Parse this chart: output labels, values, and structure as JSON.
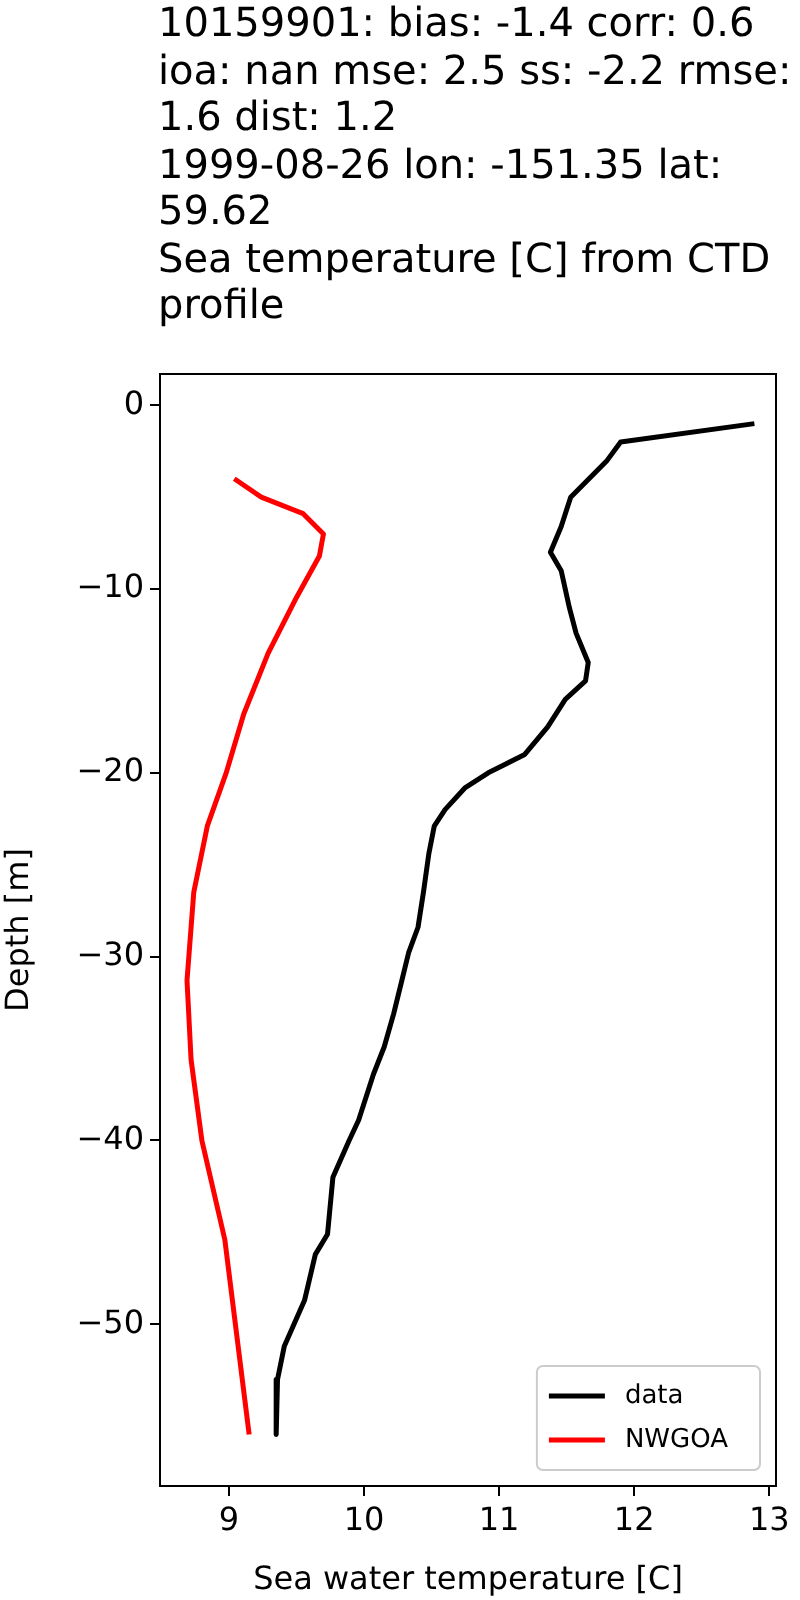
{
  "chart_data": {
    "type": "line",
    "title": "10159901: bias: -1.4  corr: 0.6  ioa: nan  mse: 2.5  ss: -2.2  rmse: 1.6  dist: 1.2\n1999-08-26 lon: -151.35 lat: 59.62\nSea temperature [C] from CTD profile",
    "xlabel": "Sea water temperature [C]",
    "ylabel": "Depth [m]",
    "series": [
      {
        "name": "data",
        "color": "#000000",
        "x": [
          12.89,
          11.9,
          11.8,
          11.53,
          11.46,
          11.38,
          11.46,
          11.52,
          11.57,
          11.66,
          11.64,
          11.49,
          11.36,
          11.19,
          10.92,
          10.75,
          10.6,
          10.52,
          10.48,
          10.44,
          10.4,
          10.33,
          10.28,
          10.22,
          10.15,
          10.07,
          9.96,
          9.89,
          9.77,
          9.73,
          9.64,
          9.56,
          9.41,
          9.36,
          9.35
        ],
        "values": [
          -1,
          -2,
          -3,
          -5,
          -6.6,
          -8,
          -9,
          -11,
          -12.4,
          -14,
          -15,
          -16,
          -17.5,
          -19,
          -20,
          -20.8,
          -22,
          -22.9,
          -24.4,
          -26.5,
          -28.4,
          -29.8,
          -31.3,
          -33.1,
          -34.9,
          -36.4,
          -38.9,
          -40,
          -42,
          -45.1,
          -46.2,
          -48.7,
          -51.2,
          -53,
          -56
        ]
      },
      {
        "name": "NWGOA",
        "color": "#ff0000",
        "x": [
          9.04,
          9.24,
          9.55,
          9.7,
          9.67,
          9.49,
          9.29,
          9.11,
          8.98,
          8.84,
          8.74,
          8.69,
          8.72,
          8.8,
          8.97,
          9.15
        ],
        "values": [
          -4,
          -5,
          -5.9,
          -7,
          -8.2,
          -10.6,
          -13.5,
          -16.8,
          -20,
          -22.9,
          -26.5,
          -31.3,
          -35.6,
          -40,
          -45.4,
          -56
        ]
      }
    ],
    "xlim": [
      8.49,
      13.05
    ],
    "xticks": [
      9,
      10,
      11,
      12,
      13
    ],
    "ylim": [
      -58.8,
      1.7
    ],
    "yticks": [
      0,
      -10,
      -20,
      -30,
      -40,
      -50
    ],
    "grid": false,
    "legend": "bottom right",
    "marker": "none",
    "line_style": "solid"
  }
}
